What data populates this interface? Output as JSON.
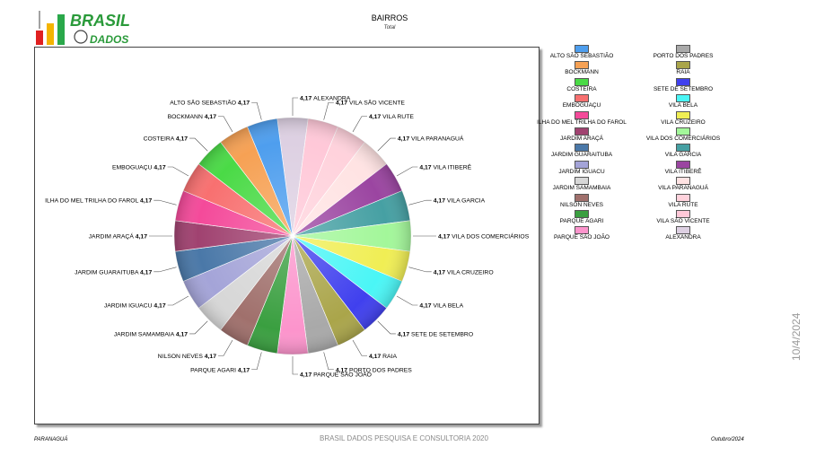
{
  "header": {
    "logo_text_top": "BRASIL",
    "logo_text_bottom": "DADOS",
    "title": "BAIRROS",
    "subtitle": "Total"
  },
  "footer": {
    "left": "PARANAGUÁ",
    "center": "BRASIL DADOS  PESQUISA E CONSULTORIA  2020",
    "right": "Outubro/2024",
    "vertical_date": "10/4/2024"
  },
  "chart_data": {
    "type": "pie",
    "title": "BAIRROS",
    "subtitle": "Total",
    "slices": [
      {
        "label": "ALEXANDRA",
        "value": 4.17,
        "color": "#ddd0e2"
      },
      {
        "label": "VILA SÃO VICENTE",
        "value": 4.17,
        "color": "#ffc8d8"
      },
      {
        "label": "VILA RUTE",
        "value": 4.17,
        "color": "#ffd2dc"
      },
      {
        "label": "VILA PARANAGUÁ",
        "value": 4.17,
        "color": "#ffe3e3"
      },
      {
        "label": "VILA ITIBERÊ",
        "value": 4.17,
        "color": "#9b45a1"
      },
      {
        "label": "VILA GARCIA",
        "value": 4.17,
        "color": "#46a0a3"
      },
      {
        "label": "VILA DOS COMERCIÁRIOS",
        "value": 4.17,
        "color": "#a3f79a"
      },
      {
        "label": "VILA CRUZEIRO",
        "value": 4.17,
        "color": "#f0ee54"
      },
      {
        "label": "VILA BELA",
        "value": 4.17,
        "color": "#4af6f6"
      },
      {
        "label": "SETE DE SETEMBRO",
        "value": 4.17,
        "color": "#4040ee"
      },
      {
        "label": "RAIA",
        "value": 4.17,
        "color": "#aaa54a"
      },
      {
        "label": "PORTO DOS PADRES",
        "value": 4.17,
        "color": "#a9a9a9"
      },
      {
        "label": "PARQUE SÃO JOÃO",
        "value": 4.17,
        "color": "#fc94cc"
      },
      {
        "label": "PARQUE AGARI",
        "value": 4.17,
        "color": "#3a9f40"
      },
      {
        "label": "NILSON NEVES",
        "value": 4.17,
        "color": "#a0706c"
      },
      {
        "label": "JARDIM SAMAMBAIA",
        "value": 4.17,
        "color": "#d7d7d7"
      },
      {
        "label": "JARDIM IGUACU",
        "value": 4.17,
        "color": "#a4a4d8"
      },
      {
        "label": "JARDIM GUARAITUBA",
        "value": 4.17,
        "color": "#4a78a8"
      },
      {
        "label": "JARDIM ARAÇÁ",
        "value": 4.17,
        "color": "#a04270"
      },
      {
        "label": "ILHA DO MEL TRILHA DO FAROL",
        "value": 4.17,
        "color": "#f44a9a"
      },
      {
        "label": "EMBOGUAÇU",
        "value": 4.17,
        "color": "#f87070"
      },
      {
        "label": "COSTEIRA",
        "value": 4.17,
        "color": "#4ada46"
      },
      {
        "label": "BOCKMANN",
        "value": 4.17,
        "color": "#f6a154"
      },
      {
        "label": "ALTO SÃO SEBASTIÃO",
        "value": 4.17,
        "color": "#4e9eee"
      }
    ],
    "legend": {
      "placement": "right",
      "columns": [
        [
          "ALTO SÃO SEBASTIÃO",
          "BOCKMANN",
          "COSTEIRA",
          "EMBOGUAÇU",
          "ILHA DO MEL TRILHA DO FAROL",
          "JARDIM ARAÇÁ",
          "JARDIM GUARAITUBA",
          "JARDIM IGUACU",
          "JARDIM SAMAMBAIA",
          "NILSON NEVES",
          "PARQUE AGARI",
          "PARQUE SÃO JOÃO"
        ],
        [
          "PORTO DOS PADRES",
          "RAIA",
          "SETE DE SETEMBRO",
          "VILA BELA",
          "VILA CRUZEIRO",
          "VILA DOS COMERCIÁRIOS",
          "VILA GARCIA",
          "VILA ITIBERÊ",
          "VILA PARANAGUÁ",
          "VILA RUTE",
          "VILA SÃO VICENTE",
          "ALEXANDRA"
        ]
      ]
    }
  }
}
